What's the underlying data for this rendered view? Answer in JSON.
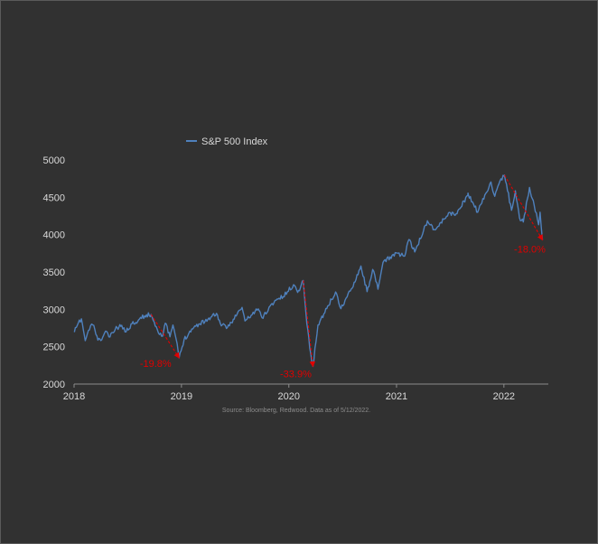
{
  "chart_data": {
    "type": "line",
    "title": "",
    "xlabel": "",
    "ylabel": "",
    "x_ticks": [
      "2018",
      "2019",
      "2020",
      "2021",
      "2022"
    ],
    "y_ticks": [
      "2000",
      "2500",
      "3000",
      "3500",
      "4000",
      "4500",
      "5000"
    ],
    "xlim": [
      "2018-01-01",
      "2022-06-01"
    ],
    "ylim": [
      2000,
      5000
    ],
    "legend": {
      "position": "top-left"
    },
    "grid": false,
    "series": [
      {
        "name": "S&P 500 Index",
        "color": "#4f81bd",
        "points": [
          [
            "2018-01-02",
            2695
          ],
          [
            "2018-01-12",
            2786
          ],
          [
            "2018-01-26",
            2873
          ],
          [
            "2018-02-08",
            2581
          ],
          [
            "2018-02-26",
            2780
          ],
          [
            "2018-03-09",
            2786
          ],
          [
            "2018-03-23",
            2588
          ],
          [
            "2018-04-02",
            2582
          ],
          [
            "2018-04-18",
            2708
          ],
          [
            "2018-05-03",
            2630
          ],
          [
            "2018-05-21",
            2733
          ],
          [
            "2018-06-12",
            2786
          ],
          [
            "2018-06-27",
            2700
          ],
          [
            "2018-07-17",
            2809
          ],
          [
            "2018-08-08",
            2858
          ],
          [
            "2018-08-29",
            2914
          ],
          [
            "2018-09-20",
            2931
          ],
          [
            "2018-10-11",
            2729
          ],
          [
            "2018-10-29",
            2641
          ],
          [
            "2018-11-07",
            2814
          ],
          [
            "2018-11-23",
            2633
          ],
          [
            "2018-12-03",
            2790
          ],
          [
            "2018-12-14",
            2600
          ],
          [
            "2018-12-24",
            2351
          ],
          [
            "2019-01-10",
            2596
          ],
          [
            "2019-02-05",
            2737
          ],
          [
            "2019-03-01",
            2804
          ],
          [
            "2019-04-01",
            2867
          ],
          [
            "2019-04-30",
            2946
          ],
          [
            "2019-05-13",
            2812
          ],
          [
            "2019-06-03",
            2744
          ],
          [
            "2019-07-26",
            3026
          ],
          [
            "2019-08-05",
            2845
          ],
          [
            "2019-09-19",
            3006
          ],
          [
            "2019-10-02",
            2887
          ],
          [
            "2019-11-15",
            3120
          ],
          [
            "2019-12-13",
            3169
          ],
          [
            "2020-01-17",
            3330
          ],
          [
            "2020-01-31",
            3226
          ],
          [
            "2020-02-19",
            3386
          ],
          [
            "2020-02-28",
            2954
          ],
          [
            "2020-03-12",
            2481
          ],
          [
            "2020-03-23",
            2237
          ],
          [
            "2020-04-09",
            2790
          ],
          [
            "2020-04-29",
            2940
          ],
          [
            "2020-06-08",
            3232
          ],
          [
            "2020-06-26",
            3009
          ],
          [
            "2020-07-31",
            3271
          ],
          [
            "2020-09-02",
            3580
          ],
          [
            "2020-09-23",
            3237
          ],
          [
            "2020-10-12",
            3534
          ],
          [
            "2020-10-30",
            3270
          ],
          [
            "2020-11-16",
            3627
          ],
          [
            "2020-12-31",
            3756
          ],
          [
            "2021-01-29",
            3714
          ],
          [
            "2021-02-12",
            3934
          ],
          [
            "2021-03-04",
            3768
          ],
          [
            "2021-04-16",
            4185
          ],
          [
            "2021-05-12",
            4063
          ],
          [
            "2021-06-30",
            4298
          ],
          [
            "2021-07-19",
            4258
          ],
          [
            "2021-08-31",
            4523
          ],
          [
            "2021-09-02",
            4537
          ],
          [
            "2021-10-04",
            4300
          ],
          [
            "2021-11-18",
            4705
          ],
          [
            "2021-12-01",
            4513
          ],
          [
            "2021-12-29",
            4793
          ],
          [
            "2022-01-03",
            4797
          ],
          [
            "2022-01-27",
            4326
          ],
          [
            "2022-02-09",
            4587
          ],
          [
            "2022-02-23",
            4225
          ],
          [
            "2022-03-08",
            4170
          ],
          [
            "2022-03-29",
            4632
          ],
          [
            "2022-04-14",
            4392
          ],
          [
            "2022-04-29",
            4132
          ],
          [
            "2022-05-04",
            4300
          ],
          [
            "2022-05-12",
            3930
          ]
        ]
      }
    ],
    "annotations": [
      {
        "text": "-19.8%",
        "from": [
          "2018-09-20",
          2931
        ],
        "to": [
          "2018-12-24",
          2351
        ]
      },
      {
        "text": "-33.9%",
        "from": [
          "2020-02-19",
          3386
        ],
        "to": [
          "2020-03-23",
          2237
        ]
      },
      {
        "text": "-18.0%",
        "from": [
          "2022-01-03",
          4797
        ],
        "to": [
          "2022-05-12",
          3930
        ]
      }
    ],
    "source_note": "Source: Bloomberg, Redwood. Data as of 5/12/2022."
  }
}
